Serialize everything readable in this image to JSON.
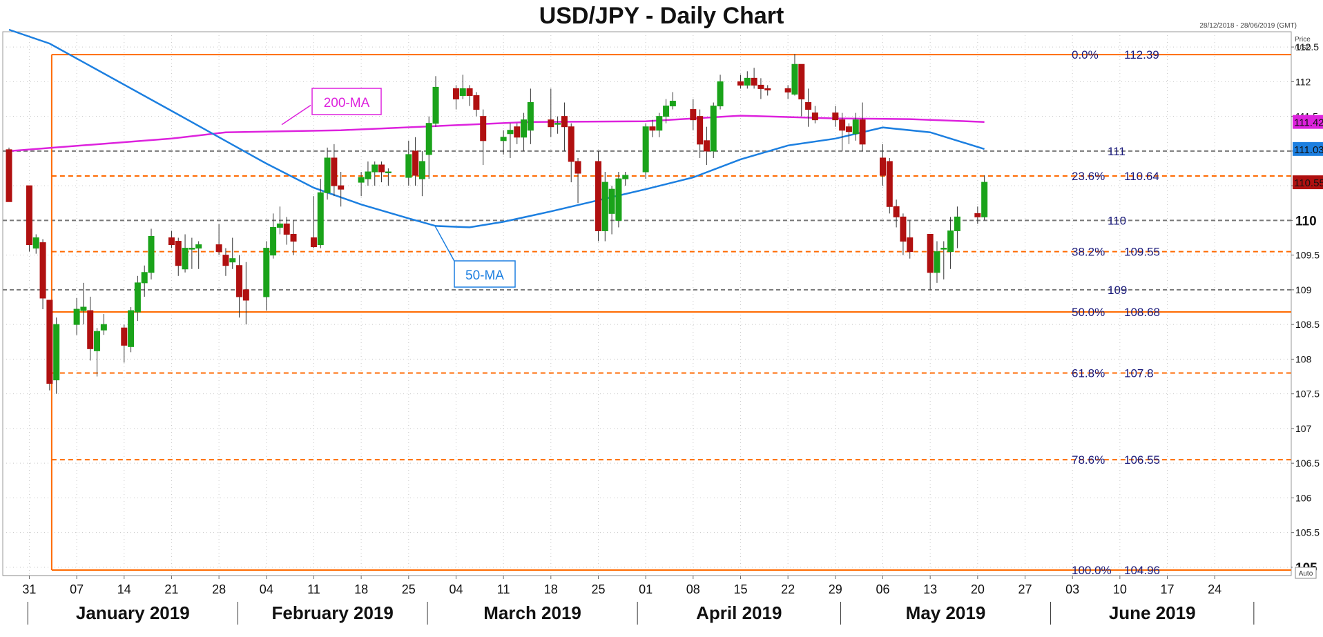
{
  "chart_data": {
    "type": "candlestick",
    "title": "USD/JPY - Daily Chart",
    "date_range": "28/12/2018 - 28/06/2019 (GMT)",
    "price_axis_label": "Price /USD",
    "ylim": [
      104.88,
      112.72
    ],
    "y_ticks": [
      "112.5",
      "112",
      "111.5",
      "111",
      "110.5",
      "110",
      "109.5",
      "109",
      "108.5",
      "108",
      "107.5",
      "107",
      "106.5",
      "106",
      "105.5",
      "105"
    ],
    "x_day_ticks": [
      "31",
      "07",
      "14",
      "21",
      "28",
      "04",
      "11",
      "18",
      "25",
      "04",
      "11",
      "18",
      "25",
      "01",
      "08",
      "15",
      "22",
      "29",
      "06",
      "13",
      "20",
      "27",
      "03",
      "10",
      "17",
      "24"
    ],
    "months": [
      "January 2019",
      "February 2019",
      "March 2019",
      "April 2019",
      "May 2019",
      "June 2019"
    ],
    "colors": {
      "up": "#1aa31a",
      "down": "#b01010",
      "ma50": "#1c7fe0",
      "ma200": "#dd22dd",
      "fib": "#ff6a00",
      "level": "#777777",
      "label_text": "#1a1a7a"
    },
    "ma_labels": {
      "ma200": "200-MA",
      "ma50": "50-MA"
    },
    "axis_badges": [
      {
        "value": 111.42,
        "text": "111.42",
        "color": "#dd22dd"
      },
      {
        "value": 111.03,
        "text": "111.03",
        "color": "#1c7fe0"
      },
      {
        "value": 110.55,
        "text": "110.55",
        "color": "#b01010"
      }
    ],
    "bold_axis_labels": [
      {
        "value": 110,
        "text": "110"
      },
      {
        "value": 105,
        "text": "105"
      }
    ],
    "fib_levels": [
      {
        "pct": "0.0%",
        "value": 112.39,
        "label": "112.39",
        "style": "solid"
      },
      {
        "pct": "23.6%",
        "value": 110.64,
        "label": "110.64",
        "style": "dashed"
      },
      {
        "pct": "38.2%",
        "value": 109.55,
        "label": "109.55",
        "style": "dashed"
      },
      {
        "pct": "50.0%",
        "value": 108.68,
        "label": "108.68",
        "style": "solid"
      },
      {
        "pct": "61.8%",
        "value": 107.8,
        "label": "107.8",
        "style": "dashed"
      },
      {
        "pct": "78.6%",
        "value": 106.55,
        "label": "106.55",
        "style": "dashed"
      },
      {
        "pct": "100.0%",
        "value": 104.96,
        "label": "104.96",
        "style": "solid"
      }
    ],
    "horizontal_levels": [
      {
        "value": 111,
        "label": "111"
      },
      {
        "value": 110,
        "label": "110"
      },
      {
        "value": 109,
        "label": "109"
      }
    ],
    "candles": [
      {
        "date": "2018-12-28",
        "open": 111.02,
        "high": 111.05,
        "low": 110.27,
        "close": 110.27
      },
      {
        "date": "2018-12-31",
        "open": 110.5,
        "high": 110.5,
        "low": 109.55,
        "close": 109.65
      },
      {
        "date": "2019-01-01",
        "open": 109.6,
        "high": 109.8,
        "low": 109.52,
        "close": 109.75
      },
      {
        "date": "2019-01-02",
        "open": 109.68,
        "high": 109.73,
        "low": 108.72,
        "close": 108.88
      },
      {
        "date": "2019-01-03",
        "open": 108.85,
        "high": 108.85,
        "low": 107.55,
        "close": 107.65
      },
      {
        "date": "2019-01-04",
        "open": 107.7,
        "high": 108.6,
        "low": 107.5,
        "close": 108.5
      },
      {
        "date": "2019-01-07",
        "open": 108.5,
        "high": 108.88,
        "low": 108.35,
        "close": 108.72
      },
      {
        "date": "2019-01-08",
        "open": 108.7,
        "high": 109.1,
        "low": 108.5,
        "close": 108.75
      },
      {
        "date": "2019-01-09",
        "open": 108.7,
        "high": 108.9,
        "low": 107.98,
        "close": 108.15
      },
      {
        "date": "2019-01-10",
        "open": 108.12,
        "high": 108.45,
        "low": 107.75,
        "close": 108.4
      },
      {
        "date": "2019-01-11",
        "open": 108.42,
        "high": 108.65,
        "low": 108.35,
        "close": 108.5
      },
      {
        "date": "2019-01-14",
        "open": 108.45,
        "high": 108.5,
        "low": 107.95,
        "close": 108.2
      },
      {
        "date": "2019-01-15",
        "open": 108.18,
        "high": 108.75,
        "low": 108.1,
        "close": 108.7
      },
      {
        "date": "2019-01-16",
        "open": 108.68,
        "high": 109.2,
        "low": 108.55,
        "close": 109.1
      },
      {
        "date": "2019-01-17",
        "open": 109.1,
        "high": 109.35,
        "low": 108.9,
        "close": 109.25
      },
      {
        "date": "2019-01-18",
        "open": 109.25,
        "high": 109.88,
        "low": 109.15,
        "close": 109.77
      },
      {
        "date": "2019-01-21",
        "open": 109.75,
        "high": 109.85,
        "low": 109.6,
        "close": 109.65
      },
      {
        "date": "2019-01-22",
        "open": 109.7,
        "high": 109.75,
        "low": 109.2,
        "close": 109.35
      },
      {
        "date": "2019-01-23",
        "open": 109.3,
        "high": 109.8,
        "low": 109.25,
        "close": 109.6
      },
      {
        "date": "2019-01-24",
        "open": 109.6,
        "high": 109.75,
        "low": 109.3,
        "close": 109.6
      },
      {
        "date": "2019-01-25",
        "open": 109.6,
        "high": 109.7,
        "low": 109.3,
        "close": 109.65
      },
      {
        "date": "2019-01-28",
        "open": 109.65,
        "high": 109.95,
        "low": 109.5,
        "close": 109.55
      },
      {
        "date": "2019-01-29",
        "open": 109.5,
        "high": 109.6,
        "low": 109.2,
        "close": 109.35
      },
      {
        "date": "2019-01-30",
        "open": 109.4,
        "high": 109.75,
        "low": 109.3,
        "close": 109.45
      },
      {
        "date": "2019-01-31",
        "open": 109.35,
        "high": 109.5,
        "low": 108.6,
        "close": 108.9
      },
      {
        "date": "2019-02-01",
        "open": 109.0,
        "high": 109.4,
        "low": 108.5,
        "close": 108.85
      },
      {
        "date": "2019-02-04",
        "open": 108.9,
        "high": 109.7,
        "low": 108.7,
        "close": 109.6
      },
      {
        "date": "2019-02-05",
        "open": 109.5,
        "high": 110.1,
        "low": 109.45,
        "close": 109.9
      },
      {
        "date": "2019-02-06",
        "open": 109.9,
        "high": 110.2,
        "low": 109.8,
        "close": 109.95
      },
      {
        "date": "2019-02-07",
        "open": 109.95,
        "high": 110.05,
        "low": 109.65,
        "close": 109.8
      },
      {
        "date": "2019-02-08",
        "open": 109.8,
        "high": 110.0,
        "low": 109.5,
        "close": 109.7
      },
      {
        "date": "2019-02-11",
        "open": 109.75,
        "high": 110.35,
        "low": 109.6,
        "close": 109.62
      },
      {
        "date": "2019-02-12",
        "open": 109.65,
        "high": 110.6,
        "low": 109.6,
        "close": 110.4
      },
      {
        "date": "2019-02-13",
        "open": 110.4,
        "high": 111.05,
        "low": 110.3,
        "close": 110.9
      },
      {
        "date": "2019-02-14",
        "open": 110.9,
        "high": 111.1,
        "low": 110.35,
        "close": 110.5
      },
      {
        "date": "2019-02-15",
        "open": 110.5,
        "high": 110.7,
        "low": 110.2,
        "close": 110.45
      },
      {
        "date": "2019-02-18",
        "open": 110.55,
        "high": 110.7,
        "low": 110.35,
        "close": 110.62
      },
      {
        "date": "2019-02-19",
        "open": 110.6,
        "high": 110.85,
        "low": 110.5,
        "close": 110.7
      },
      {
        "date": "2019-02-20",
        "open": 110.7,
        "high": 110.85,
        "low": 110.5,
        "close": 110.8
      },
      {
        "date": "2019-02-21",
        "open": 110.8,
        "high": 110.85,
        "low": 110.55,
        "close": 110.7
      },
      {
        "date": "2019-02-22",
        "open": 110.7,
        "high": 110.75,
        "low": 110.5,
        "close": 110.7
      },
      {
        "date": "2019-02-25",
        "open": 110.62,
        "high": 111.15,
        "low": 110.5,
        "close": 110.95
      },
      {
        "date": "2019-02-26",
        "open": 111.0,
        "high": 111.2,
        "low": 110.5,
        "close": 110.65
      },
      {
        "date": "2019-02-27",
        "open": 110.6,
        "high": 111.0,
        "low": 110.35,
        "close": 110.85
      },
      {
        "date": "2019-02-28",
        "open": 110.95,
        "high": 111.5,
        "low": 110.6,
        "close": 111.4
      },
      {
        "date": "2019-03-01",
        "open": 111.4,
        "high": 112.08,
        "low": 111.35,
        "close": 111.92
      },
      {
        "date": "2019-03-04",
        "open": 111.9,
        "high": 111.95,
        "low": 111.6,
        "close": 111.75
      },
      {
        "date": "2019-03-05",
        "open": 111.8,
        "high": 112.1,
        "low": 111.75,
        "close": 111.9
      },
      {
        "date": "2019-03-06",
        "open": 111.9,
        "high": 111.95,
        "low": 111.65,
        "close": 111.8
      },
      {
        "date": "2019-03-07",
        "open": 111.8,
        "high": 111.85,
        "low": 111.5,
        "close": 111.6
      },
      {
        "date": "2019-03-08",
        "open": 111.5,
        "high": 111.6,
        "low": 110.8,
        "close": 111.15
      },
      {
        "date": "2019-03-11",
        "open": 111.15,
        "high": 111.3,
        "low": 110.95,
        "close": 111.2
      },
      {
        "date": "2019-03-12",
        "open": 111.25,
        "high": 111.4,
        "low": 110.9,
        "close": 111.3
      },
      {
        "date": "2019-03-13",
        "open": 111.35,
        "high": 111.4,
        "low": 111.1,
        "close": 111.2
      },
      {
        "date": "2019-03-14",
        "open": 111.2,
        "high": 111.55,
        "low": 111.0,
        "close": 111.45
      },
      {
        "date": "2019-03-15",
        "open": 111.3,
        "high": 111.9,
        "low": 111.1,
        "close": 111.7
      },
      {
        "date": "2019-03-18",
        "open": 111.45,
        "high": 111.9,
        "low": 111.2,
        "close": 111.35
      },
      {
        "date": "2019-03-19",
        "open": 111.4,
        "high": 111.5,
        "low": 111.25,
        "close": 111.4
      },
      {
        "date": "2019-03-20",
        "open": 111.5,
        "high": 111.7,
        "low": 111.0,
        "close": 111.35
      },
      {
        "date": "2019-03-21",
        "open": 111.35,
        "high": 111.4,
        "low": 110.55,
        "close": 110.85
      },
      {
        "date": "2019-03-22",
        "open": 110.85,
        "high": 110.9,
        "low": 110.25,
        "close": 110.68
      },
      {
        "date": "2019-03-25",
        "open": 110.85,
        "high": 111.0,
        "low": 109.7,
        "close": 109.85
      },
      {
        "date": "2019-03-26",
        "open": 109.85,
        "high": 110.7,
        "low": 109.7,
        "close": 110.55
      },
      {
        "date": "2019-03-27",
        "open": 110.1,
        "high": 110.5,
        "low": 109.8,
        "close": 110.45
      },
      {
        "date": "2019-03-28",
        "open": 110.0,
        "high": 110.7,
        "low": 109.9,
        "close": 110.6
      },
      {
        "date": "2019-03-29",
        "open": 110.6,
        "high": 110.7,
        "low": 110.5,
        "close": 110.65
      },
      {
        "date": "2019-04-01",
        "open": 110.7,
        "high": 111.4,
        "low": 110.6,
        "close": 111.35
      },
      {
        "date": "2019-04-02",
        "open": 111.35,
        "high": 111.45,
        "low": 111.2,
        "close": 111.3
      },
      {
        "date": "2019-04-03",
        "open": 111.3,
        "high": 111.55,
        "low": 111.2,
        "close": 111.5
      },
      {
        "date": "2019-04-04",
        "open": 111.5,
        "high": 111.75,
        "low": 111.4,
        "close": 111.65
      },
      {
        "date": "2019-04-05",
        "open": 111.65,
        "high": 111.85,
        "low": 111.6,
        "close": 111.72
      },
      {
        "date": "2019-04-08",
        "open": 111.6,
        "high": 111.75,
        "low": 111.3,
        "close": 111.45
      },
      {
        "date": "2019-04-09",
        "open": 111.5,
        "high": 111.6,
        "low": 110.9,
        "close": 111.1
      },
      {
        "date": "2019-04-10",
        "open": 111.15,
        "high": 111.35,
        "low": 110.8,
        "close": 111.0
      },
      {
        "date": "2019-04-11",
        "open": 111.0,
        "high": 111.7,
        "low": 110.9,
        "close": 111.65
      },
      {
        "date": "2019-04-12",
        "open": 111.65,
        "high": 112.1,
        "low": 111.6,
        "close": 112.0
      },
      {
        "date": "2019-04-15",
        "open": 112.0,
        "high": 112.1,
        "low": 111.9,
        "close": 111.95
      },
      {
        "date": "2019-04-16",
        "open": 111.95,
        "high": 112.15,
        "low": 111.9,
        "close": 112.05
      },
      {
        "date": "2019-04-17",
        "open": 112.05,
        "high": 112.2,
        "low": 111.9,
        "close": 111.95
      },
      {
        "date": "2019-04-18",
        "open": 111.95,
        "high": 112.05,
        "low": 111.75,
        "close": 111.9
      },
      {
        "date": "2019-04-19",
        "open": 111.9,
        "high": 111.95,
        "low": 111.8,
        "close": 111.88
      },
      {
        "date": "2019-04-22",
        "open": 111.9,
        "high": 111.95,
        "low": 111.75,
        "close": 111.85
      },
      {
        "date": "2019-04-23",
        "open": 111.82,
        "high": 112.4,
        "low": 111.8,
        "close": 112.25
      },
      {
        "date": "2019-04-24",
        "open": 112.25,
        "high": 112.25,
        "low": 111.5,
        "close": 111.75
      },
      {
        "date": "2019-04-25",
        "open": 111.7,
        "high": 111.9,
        "low": 111.35,
        "close": 111.6
      },
      {
        "date": "2019-04-26",
        "open": 111.55,
        "high": 111.65,
        "low": 111.4,
        "close": 111.45
      },
      {
        "date": "2019-04-29",
        "open": 111.55,
        "high": 111.65,
        "low": 111.35,
        "close": 111.45
      },
      {
        "date": "2019-04-30",
        "open": 111.45,
        "high": 111.55,
        "low": 111.0,
        "close": 111.3
      },
      {
        "date": "2019-05-01",
        "open": 111.35,
        "high": 111.4,
        "low": 111.1,
        "close": 111.28
      },
      {
        "date": "2019-05-02",
        "open": 111.25,
        "high": 111.55,
        "low": 111.15,
        "close": 111.45
      },
      {
        "date": "2019-05-03",
        "open": 111.45,
        "high": 111.7,
        "low": 111.0,
        "close": 111.1
      },
      {
        "date": "2019-05-06",
        "open": 110.9,
        "high": 111.1,
        "low": 110.5,
        "close": 110.65
      },
      {
        "date": "2019-05-07",
        "open": 110.85,
        "high": 110.9,
        "low": 110.1,
        "close": 110.2
      },
      {
        "date": "2019-05-08",
        "open": 110.2,
        "high": 110.3,
        "low": 109.9,
        "close": 110.05
      },
      {
        "date": "2019-05-09",
        "open": 110.05,
        "high": 110.1,
        "low": 109.5,
        "close": 109.7
      },
      {
        "date": "2019-05-10",
        "open": 109.75,
        "high": 110.0,
        "low": 109.45,
        "close": 109.55
      },
      {
        "date": "2019-05-13",
        "open": 109.8,
        "high": 109.8,
        "low": 109.0,
        "close": 109.25
      },
      {
        "date": "2019-05-14",
        "open": 109.25,
        "high": 109.7,
        "low": 109.1,
        "close": 109.55
      },
      {
        "date": "2019-05-15",
        "open": 109.6,
        "high": 109.7,
        "low": 109.15,
        "close": 109.6
      },
      {
        "date": "2019-05-16",
        "open": 109.55,
        "high": 110.05,
        "low": 109.3,
        "close": 109.85
      },
      {
        "date": "2019-05-17",
        "open": 109.85,
        "high": 110.2,
        "low": 109.6,
        "close": 110.05
      },
      {
        "date": "2019-05-20",
        "open": 110.1,
        "high": 110.2,
        "low": 109.95,
        "close": 110.05
      },
      {
        "date": "2019-05-21",
        "open": 110.05,
        "high": 110.65,
        "low": 110.0,
        "close": 110.55
      }
    ],
    "ma200_series": [
      {
        "date": "2018-12-28",
        "value": 111.0
      },
      {
        "date": "2019-01-21",
        "value": 111.18
      },
      {
        "date": "2019-01-29",
        "value": 111.27
      },
      {
        "date": "2019-02-15",
        "value": 111.3
      },
      {
        "date": "2019-03-01",
        "value": 111.36
      },
      {
        "date": "2019-03-15",
        "value": 111.42
      },
      {
        "date": "2019-04-01",
        "value": 111.43
      },
      {
        "date": "2019-04-15",
        "value": 111.51
      },
      {
        "date": "2019-04-29",
        "value": 111.47
      },
      {
        "date": "2019-05-10",
        "value": 111.46
      },
      {
        "date": "2019-05-21",
        "value": 111.42
      }
    ],
    "ma50_series": [
      {
        "date": "2018-12-28",
        "value": 112.75
      },
      {
        "date": "2019-01-03",
        "value": 112.55
      },
      {
        "date": "2019-01-08",
        "value": 112.28
      },
      {
        "date": "2019-01-21",
        "value": 111.58
      },
      {
        "date": "2019-01-28",
        "value": 111.2
      },
      {
        "date": "2019-02-04",
        "value": 110.82
      },
      {
        "date": "2019-02-11",
        "value": 110.47
      },
      {
        "date": "2019-02-18",
        "value": 110.23
      },
      {
        "date": "2019-02-25",
        "value": 110.03
      },
      {
        "date": "2019-03-01",
        "value": 109.92
      },
      {
        "date": "2019-03-06",
        "value": 109.9
      },
      {
        "date": "2019-03-11",
        "value": 109.98
      },
      {
        "date": "2019-03-18",
        "value": 110.13
      },
      {
        "date": "2019-03-25",
        "value": 110.29
      },
      {
        "date": "2019-04-01",
        "value": 110.45
      },
      {
        "date": "2019-04-08",
        "value": 110.62
      },
      {
        "date": "2019-04-15",
        "value": 110.88
      },
      {
        "date": "2019-04-22",
        "value": 111.08
      },
      {
        "date": "2019-04-29",
        "value": 111.18
      },
      {
        "date": "2019-05-06",
        "value": 111.34
      },
      {
        "date": "2019-05-13",
        "value": 111.27
      },
      {
        "date": "2019-05-21",
        "value": 111.03
      }
    ]
  }
}
